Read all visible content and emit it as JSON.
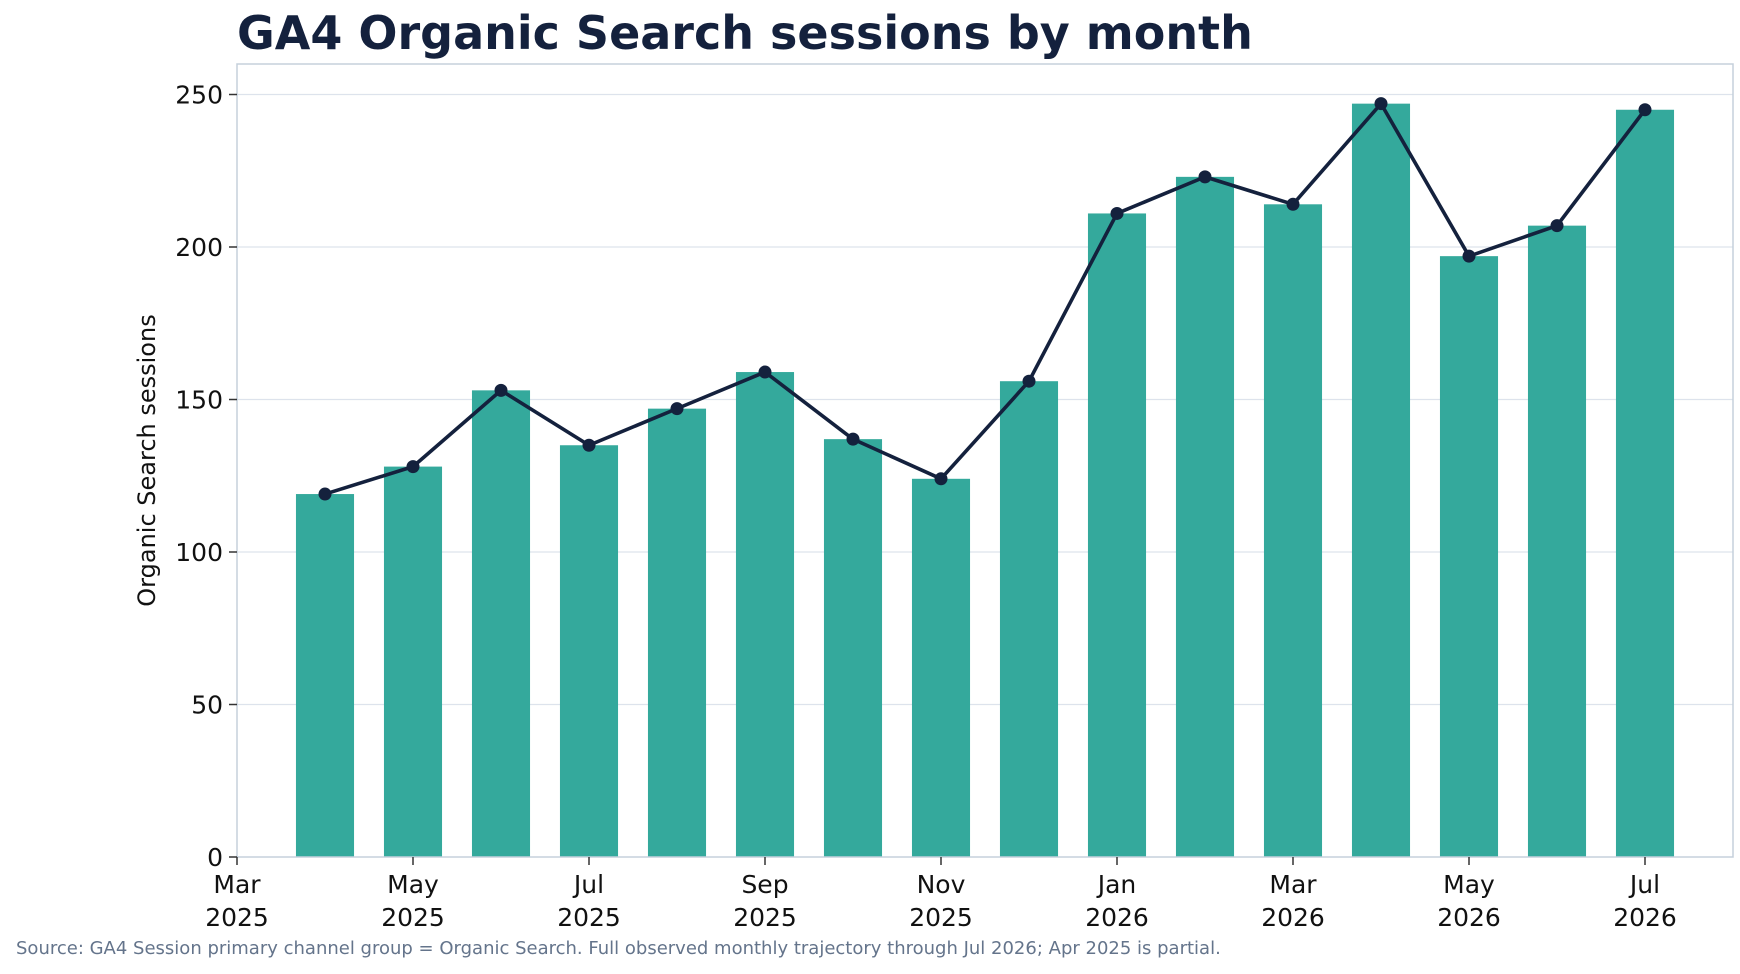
{
  "chart_data": {
    "type": "bar",
    "title": "GA4 Organic Search sessions by month",
    "ylabel": "Organic Search sessions",
    "xlabel": "",
    "x_range": [
      "2025-03",
      "2026-08"
    ],
    "ylim": [
      0,
      260
    ],
    "y_ticks": [
      0,
      50,
      100,
      150,
      200,
      250
    ],
    "x_ticks": [
      {
        "month": "2025-03",
        "label_month": "Mar",
        "label_year": "2025"
      },
      {
        "month": "2025-05",
        "label_month": "May",
        "label_year": "2025"
      },
      {
        "month": "2025-07",
        "label_month": "Jul",
        "label_year": "2025"
      },
      {
        "month": "2025-09",
        "label_month": "Sep",
        "label_year": "2025"
      },
      {
        "month": "2025-11",
        "label_month": "Nov",
        "label_year": "2025"
      },
      {
        "month": "2026-01",
        "label_month": "Jan",
        "label_year": "2026"
      },
      {
        "month": "2026-03",
        "label_month": "Mar",
        "label_year": "2026"
      },
      {
        "month": "2026-05",
        "label_month": "May",
        "label_year": "2026"
      },
      {
        "month": "2026-07",
        "label_month": "Jul",
        "label_year": "2026"
      }
    ],
    "categories": [
      "2025-04",
      "2025-05",
      "2025-06",
      "2025-07",
      "2025-08",
      "2025-09",
      "2025-10",
      "2025-11",
      "2025-12",
      "2026-01",
      "2026-02",
      "2026-03",
      "2026-04",
      "2026-05",
      "2026-06",
      "2026-07"
    ],
    "values": [
      119,
      128,
      153,
      135,
      147,
      159,
      137,
      124,
      156,
      211,
      223,
      214,
      247,
      197,
      207,
      245
    ],
    "overlay": "line-with-markers",
    "grid": {
      "horizontal": true,
      "vertical": false
    },
    "colors": {
      "bar": "#34a99c",
      "line": "#14213d",
      "grid": "#dde3ec",
      "axes": "#c5d0dc",
      "title": "#14213d",
      "note": "#64748b"
    }
  },
  "source_note": "Source: GA4 Session primary channel group = Organic Search. Full observed monthly trajectory through Jul 2026; Apr 2025 is partial."
}
